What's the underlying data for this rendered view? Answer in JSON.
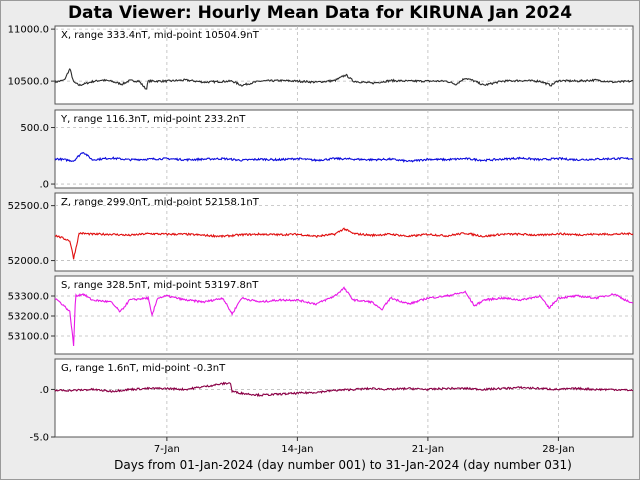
{
  "title": "Data Viewer:  Hourly Mean Data for KIRUNA Jan 2024",
  "xlabel": "Days from 01-Jan-2024 (day number 001) to 31-Jan-2024 (day number 031)",
  "chart_data": {
    "type": "line",
    "x_unit": "day of January 2024",
    "xlim": [
      1,
      32
    ],
    "x_ticks": [
      {
        "day": 7,
        "label": "7-Jan"
      },
      {
        "day": 14,
        "label": "14-Jan"
      },
      {
        "day": 21,
        "label": "21-Jan"
      },
      {
        "day": 28,
        "label": "28-Jan"
      }
    ],
    "grid": true,
    "panels": [
      {
        "component": "X",
        "label": "X, range 333.4nT, mid-point 10504.9nT",
        "color": "#2b2b2b",
        "ylim": [
          10280,
          11030
        ],
        "y_ticks": [
          {
            "value": 11000,
            "label": "11000.0"
          },
          {
            "value": 10500,
            "label": "10500.0"
          }
        ],
        "anchors": [
          [
            1,
            10490
          ],
          [
            1.5,
            10510
          ],
          [
            1.8,
            10620
          ],
          [
            2,
            10490
          ],
          [
            2.3,
            10460
          ],
          [
            3,
            10495
          ],
          [
            3.5,
            10510
          ],
          [
            4,
            10500
          ],
          [
            4.6,
            10470
          ],
          [
            5,
            10505
          ],
          [
            5.5,
            10500
          ],
          [
            5.9,
            10420
          ],
          [
            6,
            10500
          ],
          [
            7,
            10500
          ],
          [
            8,
            10510
          ],
          [
            9,
            10490
          ],
          [
            10.5,
            10500
          ],
          [
            11,
            10460
          ],
          [
            12,
            10500
          ],
          [
            13,
            10505
          ],
          [
            14,
            10500
          ],
          [
            15,
            10490
          ],
          [
            16,
            10505
          ],
          [
            16.6,
            10560
          ],
          [
            17,
            10500
          ],
          [
            18,
            10480
          ],
          [
            19,
            10505
          ],
          [
            20,
            10500
          ],
          [
            21,
            10500
          ],
          [
            22,
            10500
          ],
          [
            22.5,
            10470
          ],
          [
            23,
            10530
          ],
          [
            23.5,
            10500
          ],
          [
            24,
            10460
          ],
          [
            25,
            10500
          ],
          [
            26,
            10505
          ],
          [
            27,
            10500
          ],
          [
            27.6,
            10460
          ],
          [
            28,
            10505
          ],
          [
            29,
            10500
          ],
          [
            30,
            10510
          ],
          [
            31,
            10490
          ],
          [
            32,
            10500
          ]
        ]
      },
      {
        "component": "Y",
        "label": "Y, range 116.3nT, mid-point 233.2nT",
        "color": "#0a0adc",
        "ylim": [
          -35,
          655
        ],
        "y_ticks": [
          {
            "value": 500,
            "label": "500.0"
          },
          {
            "value": 0,
            "label": ".0"
          }
        ],
        "anchors": [
          [
            1,
            225
          ],
          [
            2,
            205
          ],
          [
            2.5,
            285
          ],
          [
            3,
            215
          ],
          [
            4,
            230
          ],
          [
            5,
            215
          ],
          [
            6,
            220
          ],
          [
            7,
            225
          ],
          [
            8,
            215
          ],
          [
            9,
            220
          ],
          [
            10,
            225
          ],
          [
            11,
            210
          ],
          [
            12,
            220
          ],
          [
            13,
            215
          ],
          [
            14,
            225
          ],
          [
            15,
            210
          ],
          [
            16,
            225
          ],
          [
            17,
            220
          ],
          [
            18,
            215
          ],
          [
            19,
            220
          ],
          [
            20,
            200
          ],
          [
            21,
            220
          ],
          [
            22,
            215
          ],
          [
            23,
            225
          ],
          [
            24,
            210
          ],
          [
            25,
            220
          ],
          [
            26,
            230
          ],
          [
            27,
            215
          ],
          [
            28,
            225
          ],
          [
            29,
            215
          ],
          [
            30,
            220
          ],
          [
            31,
            225
          ],
          [
            32,
            225
          ]
        ]
      },
      {
        "component": "Z",
        "label": "Z, range 299.0nT, mid-point 52158.1nT",
        "color": "#e01010",
        "ylim": [
          51905,
          52615
        ],
        "y_ticks": [
          {
            "value": 52500,
            "label": "52500.0"
          },
          {
            "value": 52000,
            "label": "52000.0"
          }
        ],
        "anchors": [
          [
            1,
            52230
          ],
          [
            1.8,
            52180
          ],
          [
            2,
            52020
          ],
          [
            2.3,
            52250
          ],
          [
            3,
            52240
          ],
          [
            4,
            52240
          ],
          [
            5,
            52230
          ],
          [
            6,
            52245
          ],
          [
            7,
            52240
          ],
          [
            8,
            52240
          ],
          [
            9,
            52230
          ],
          [
            10,
            52220
          ],
          [
            11,
            52235
          ],
          [
            12,
            52240
          ],
          [
            13,
            52235
          ],
          [
            14,
            52240
          ],
          [
            15,
            52220
          ],
          [
            16,
            52240
          ],
          [
            16.5,
            52290
          ],
          [
            17,
            52245
          ],
          [
            18,
            52230
          ],
          [
            19,
            52240
          ],
          [
            20,
            52220
          ],
          [
            21,
            52240
          ],
          [
            22,
            52225
          ],
          [
            23,
            52250
          ],
          [
            24,
            52220
          ],
          [
            25,
            52240
          ],
          [
            26,
            52240
          ],
          [
            27,
            52230
          ],
          [
            28,
            52245
          ],
          [
            29,
            52235
          ],
          [
            30,
            52240
          ],
          [
            31,
            52240
          ],
          [
            32,
            52245
          ]
        ]
      },
      {
        "component": "S",
        "label": "S, range 328.5nT, mid-point 53197.8nT",
        "color": "#e818e8",
        "ylim": [
          53010,
          53400
        ],
        "y_ticks": [
          {
            "value": 53300,
            "label": "53300.0"
          },
          {
            "value": 53200,
            "label": "53200.0"
          },
          {
            "value": 53100,
            "label": "53100.0"
          }
        ],
        "anchors": [
          [
            1,
            53290
          ],
          [
            1.5,
            53250
          ],
          [
            1.8,
            53220
          ],
          [
            2,
            53050
          ],
          [
            2.1,
            53300
          ],
          [
            2.5,
            53310
          ],
          [
            3,
            53280
          ],
          [
            4,
            53270
          ],
          [
            4.5,
            53220
          ],
          [
            5,
            53280
          ],
          [
            6,
            53290
          ],
          [
            6.2,
            53200
          ],
          [
            6.5,
            53290
          ],
          [
            7,
            53300
          ],
          [
            8,
            53280
          ],
          [
            9,
            53270
          ],
          [
            10,
            53290
          ],
          [
            10.5,
            53210
          ],
          [
            11,
            53290
          ],
          [
            12,
            53270
          ],
          [
            13,
            53280
          ],
          [
            14,
            53280
          ],
          [
            15,
            53260
          ],
          [
            16,
            53300
          ],
          [
            16.5,
            53340
          ],
          [
            17,
            53280
          ],
          [
            18,
            53270
          ],
          [
            18.5,
            53230
          ],
          [
            19,
            53290
          ],
          [
            20,
            53260
          ],
          [
            21,
            53290
          ],
          [
            22,
            53300
          ],
          [
            23,
            53320
          ],
          [
            23.5,
            53250
          ],
          [
            24,
            53280
          ],
          [
            25,
            53290
          ],
          [
            26,
            53280
          ],
          [
            27,
            53300
          ],
          [
            27.5,
            53240
          ],
          [
            28,
            53290
          ],
          [
            29,
            53300
          ],
          [
            30,
            53290
          ],
          [
            31,
            53310
          ],
          [
            32,
            53260
          ]
        ]
      },
      {
        "component": "G",
        "label": "G, range 1.6nT, mid-point -0.3nT",
        "color": "#8a0046",
        "ylim": [
          -5.0,
          3.2
        ],
        "y_ticks": [
          {
            "value": 0,
            "label": ".0"
          },
          {
            "value": -5,
            "label": "-5.0"
          }
        ],
        "anchors": [
          [
            1,
            -0.1
          ],
          [
            2,
            -0.1
          ],
          [
            3,
            0.0
          ],
          [
            4,
            -0.2
          ],
          [
            5,
            0.0
          ],
          [
            6,
            0.1
          ],
          [
            7,
            0.1
          ],
          [
            8,
            0.0
          ],
          [
            9,
            0.3
          ],
          [
            10,
            0.6
          ],
          [
            10.4,
            0.7
          ],
          [
            10.5,
            -0.2
          ],
          [
            11,
            -0.4
          ],
          [
            12,
            -0.6
          ],
          [
            13,
            -0.5
          ],
          [
            14,
            -0.4
          ],
          [
            15,
            -0.3
          ],
          [
            16,
            -0.1
          ],
          [
            17,
            0.0
          ],
          [
            18,
            0.1
          ],
          [
            19,
            0.0
          ],
          [
            20,
            0.1
          ],
          [
            21,
            0.0
          ],
          [
            22,
            0.1
          ],
          [
            23,
            0.1
          ],
          [
            24,
            0.0
          ],
          [
            25,
            0.1
          ],
          [
            26,
            0.2
          ],
          [
            27,
            0.1
          ],
          [
            28,
            0.0
          ],
          [
            29,
            0.1
          ],
          [
            30,
            0.0
          ],
          [
            31,
            0.0
          ],
          [
            32,
            -0.1
          ]
        ]
      }
    ]
  }
}
